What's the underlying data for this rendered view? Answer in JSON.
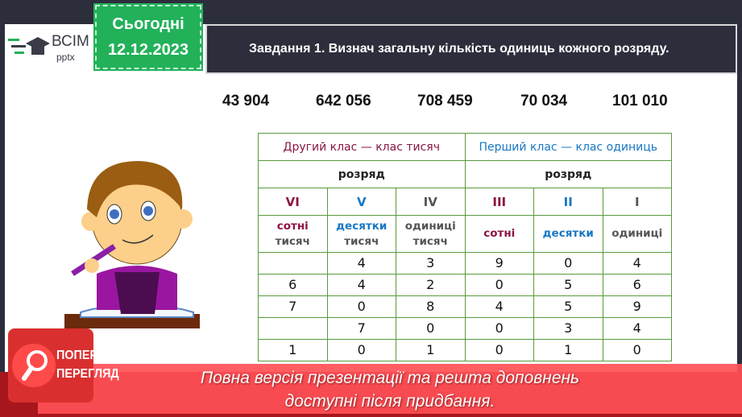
{
  "logo": {
    "brand": "ВСІМ",
    "sub": "pptx"
  },
  "date": {
    "label": "Сьогодні",
    "value": "12.12.2023"
  },
  "title": "Завдання 1. Визнач загальну кількість одиниць кожного розряду.",
  "numbers": [
    "43 904",
    "642 056",
    "708 459",
    "70 034",
    "101 010"
  ],
  "table": {
    "class_thousands": "Другий клас — клас тисяч",
    "class_units": "Перший клас — клас одиниць",
    "rank_label": "розряд",
    "roman": [
      "VI",
      "V",
      "IV",
      "III",
      "II",
      "I"
    ],
    "names": [
      [
        "сотні",
        "тисяч"
      ],
      [
        "десятки",
        "тисяч"
      ],
      [
        "одиниці",
        "тисяч"
      ],
      [
        "сотні",
        ""
      ],
      [
        "десятки",
        ""
      ],
      [
        "одиниці",
        ""
      ]
    ],
    "rows": [
      [
        "",
        "4",
        "3",
        "9",
        "0",
        "4"
      ],
      [
        "6",
        "4",
        "2",
        "0",
        "5",
        "6"
      ],
      [
        "7",
        "0",
        "8",
        "4",
        "5",
        "9"
      ],
      [
        "",
        "7",
        "0",
        "0",
        "3",
        "4"
      ],
      [
        "1",
        "0",
        "1",
        "0",
        "1",
        "0"
      ]
    ]
  },
  "preview_badge": {
    "line1": "ПОПЕРЕДНІЙ",
    "line2": "ПЕРЕГЛЯД",
    "icon": "magnifier-icon"
  },
  "banner": {
    "line1": "Повна версія презентації та решта доповнень",
    "line2": "доступні після придбання."
  },
  "colors": {
    "accent_green": "#22b159",
    "class2": "#8b1446",
    "class1": "#1778c4",
    "banner": "#ff5056",
    "badge": "#d9302f"
  }
}
